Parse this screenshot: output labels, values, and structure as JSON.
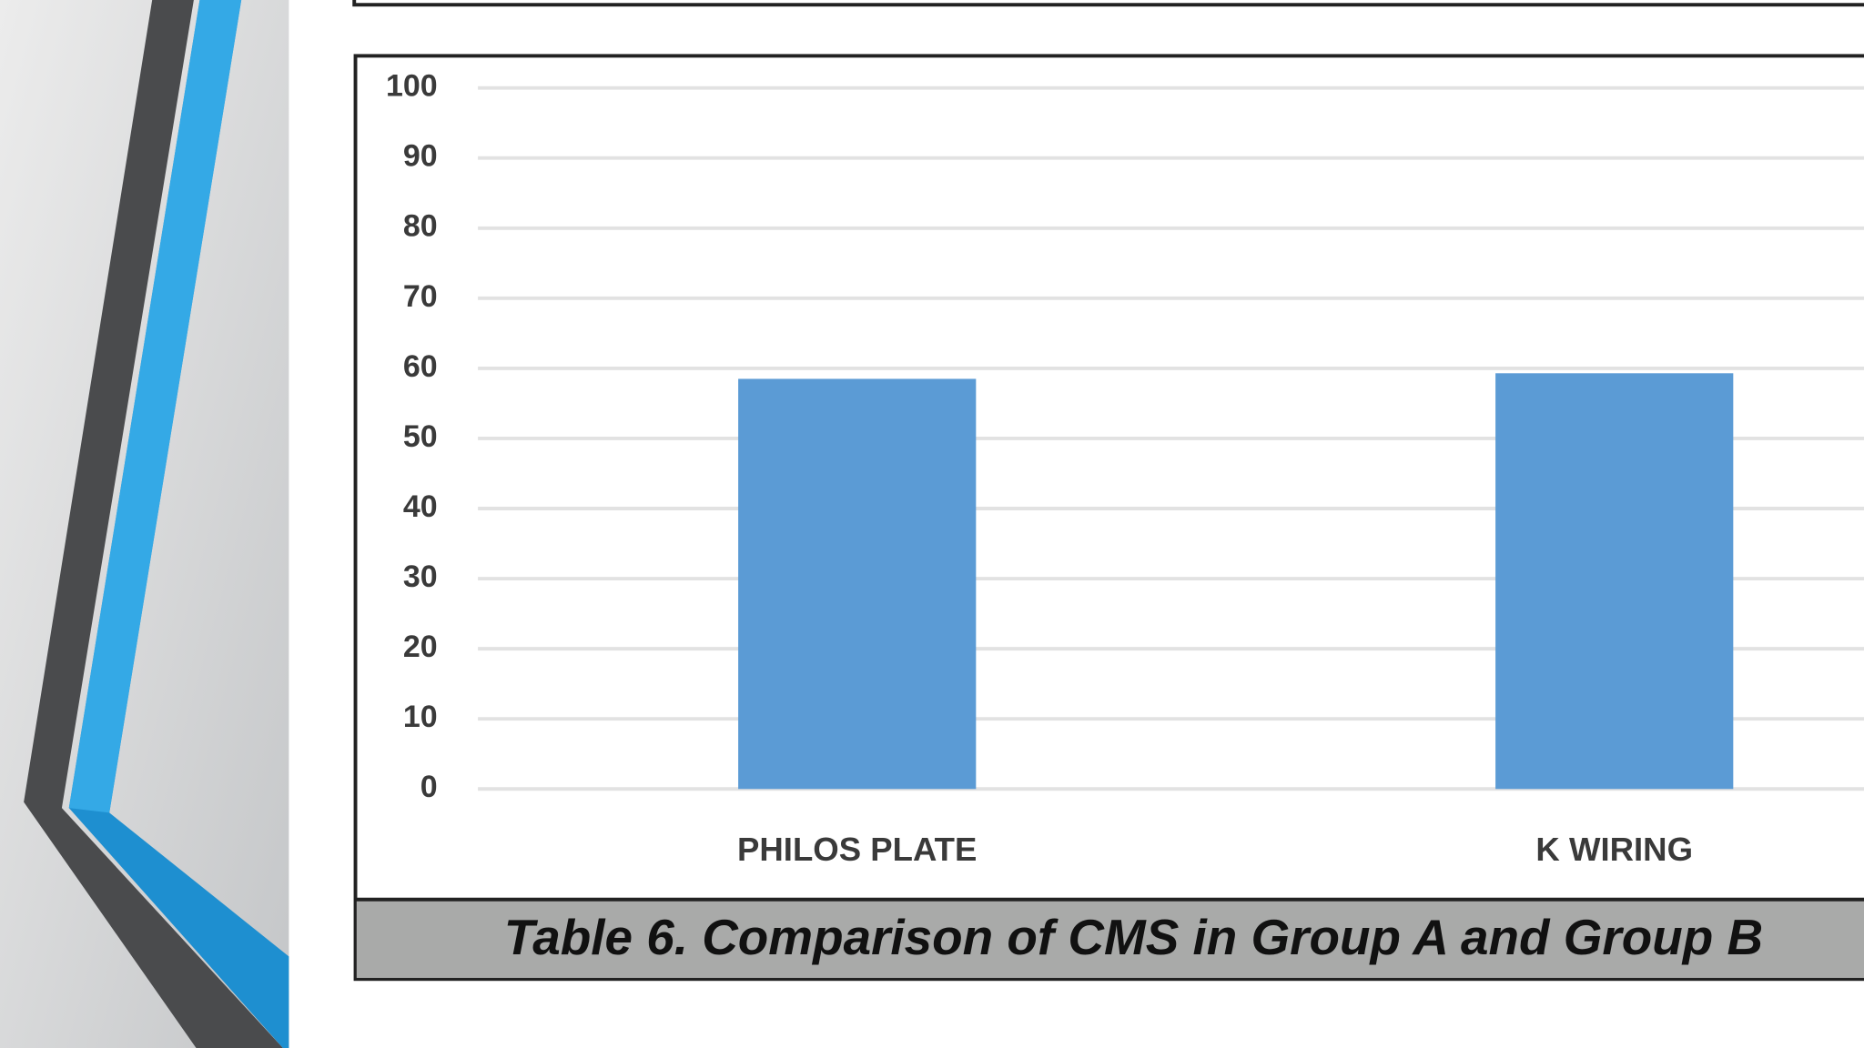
{
  "chart_data": {
    "type": "bar",
    "title": "Table 6. Comparison of CMS in Group A and Group B",
    "categories": [
      "PHILOS PLATE",
      "K WIRING"
    ],
    "values": [
      58.5,
      59.3
    ],
    "color": "#5b9bd5",
    "ylim": [
      0,
      100
    ],
    "yticks": [
      0,
      10,
      20,
      30,
      40,
      50,
      60,
      70,
      80,
      90,
      100
    ],
    "grid": true
  }
}
